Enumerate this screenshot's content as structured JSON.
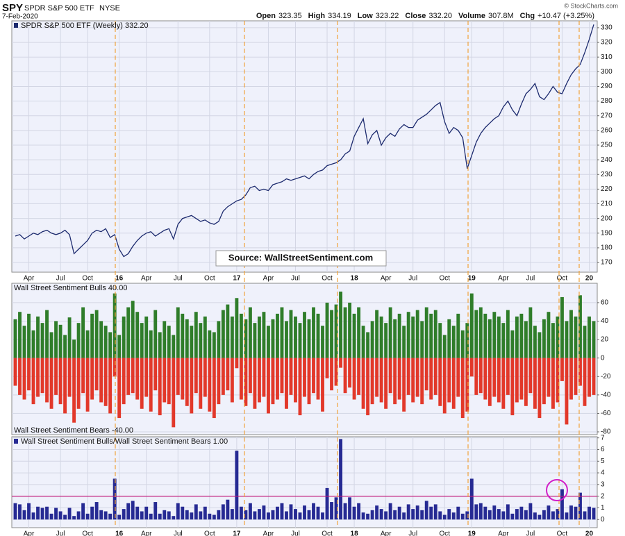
{
  "header": {
    "symbol": "SPY",
    "name": "SPDR S&P 500 ETF",
    "exchange": "NYSE",
    "date": "7-Feb-2020",
    "copyright": "© StockCharts.com",
    "quote": [
      {
        "label": "Open",
        "value": "323.35"
      },
      {
        "label": "High",
        "value": "334.19"
      },
      {
        "label": "Low",
        "value": "323.22"
      },
      {
        "label": "Close",
        "value": "332.20"
      },
      {
        "label": "Volume",
        "value": "307.8M"
      },
      {
        "label": "Chg",
        "value": "+10.47 (+3.25%)"
      }
    ]
  },
  "chart_data": [
    {
      "type": "line",
      "title": "SPDR S&P 500 ETF (Weekly) 332.20",
      "annotation": "Source: WallStreetSentiment.com",
      "color": "#1c2a6e",
      "grid": true,
      "categories": [
        null,
        null,
        null,
        "Apr",
        null,
        null,
        null,
        null,
        null,
        null,
        "Jul",
        null,
        null,
        null,
        null,
        null,
        "Oct",
        null,
        null,
        null,
        null,
        null,
        null,
        "16",
        null,
        null,
        null,
        null,
        null,
        "Apr",
        null,
        null,
        null,
        null,
        null,
        null,
        "Jul",
        null,
        null,
        null,
        null,
        null,
        null,
        "Oct",
        null,
        null,
        null,
        null,
        null,
        "17",
        null,
        null,
        null,
        null,
        null,
        null,
        "Apr",
        null,
        null,
        null,
        null,
        null,
        "Jul",
        null,
        null,
        null,
        null,
        null,
        null,
        "Oct",
        null,
        null,
        null,
        null,
        null,
        "18",
        null,
        null,
        null,
        null,
        null,
        null,
        "Apr",
        null,
        null,
        null,
        null,
        null,
        "Jul",
        null,
        null,
        null,
        null,
        null,
        null,
        "Oct",
        null,
        null,
        null,
        null,
        null,
        "19",
        null,
        null,
        null,
        null,
        null,
        null,
        "Apr",
        null,
        null,
        null,
        null,
        null,
        "Jul",
        null,
        null,
        null,
        null,
        null,
        null,
        "Oct",
        null,
        null,
        null,
        null,
        null,
        "20",
        null
      ],
      "values": [
        188,
        189,
        186,
        188,
        190,
        189,
        191,
        192,
        190,
        189,
        190,
        192,
        189,
        176,
        179,
        182,
        185,
        190,
        192,
        191,
        193,
        187,
        189,
        179,
        174,
        176,
        181,
        185,
        188,
        190,
        191,
        188,
        190,
        192,
        193,
        186,
        196,
        200,
        201,
        202,
        200,
        198,
        199,
        197,
        196,
        198,
        205,
        208,
        210,
        212,
        213,
        216,
        221,
        222,
        219,
        220,
        219,
        223,
        224,
        225,
        227,
        226,
        227,
        228,
        229,
        227,
        230,
        232,
        233,
        236,
        237,
        238,
        240,
        244,
        246,
        256,
        262,
        268,
        251,
        257,
        260,
        250,
        255,
        258,
        256,
        261,
        264,
        262,
        262,
        267,
        269,
        271,
        274,
        277,
        279,
        266,
        258,
        262,
        260,
        255,
        234,
        243,
        252,
        258,
        262,
        265,
        268,
        270,
        276,
        280,
        274,
        270,
        278,
        285,
        288,
        292,
        283,
        281,
        285,
        290,
        286,
        285,
        292,
        298,
        302,
        305,
        313,
        322,
        332.2
      ],
      "ylim": [
        163.4,
        334.7
      ],
      "yticks": [
        170,
        180,
        190,
        200,
        210,
        220,
        230,
        240,
        250,
        260,
        270,
        280,
        290,
        300,
        310,
        320,
        330
      ]
    },
    {
      "type": "bar",
      "grid": true,
      "series": [
        {
          "name": "Wall Street Sentiment Bulls 40.00",
          "color": "#2f7d2a",
          "values": [
            42,
            50,
            35,
            48,
            30,
            45,
            38,
            52,
            28,
            40,
            36,
            25,
            44,
            20,
            38,
            55,
            30,
            48,
            52,
            40,
            35,
            28,
            70,
            25,
            45,
            55,
            62,
            50,
            38,
            45,
            30,
            52,
            28,
            40,
            35,
            25,
            55,
            48,
            42,
            35,
            50,
            38,
            45,
            30,
            28,
            40,
            52,
            58,
            45,
            65,
            48,
            42,
            55,
            38,
            45,
            50,
            35,
            42,
            48,
            55,
            40,
            52,
            45,
            38,
            50,
            42,
            55,
            48,
            35,
            60,
            52,
            58,
            72,
            55,
            60,
            48,
            55,
            35,
            28,
            40,
            52,
            45,
            38,
            55,
            42,
            48,
            35,
            50,
            45,
            52,
            40,
            55,
            48,
            52,
            38,
            25,
            42,
            35,
            48,
            30,
            38,
            70,
            52,
            55,
            48,
            42,
            50,
            45,
            38,
            52,
            30,
            45,
            48,
            40,
            55,
            35,
            28,
            42,
            50,
            38,
            45,
            66,
            40,
            52,
            45,
            68,
            35,
            45,
            40
          ]
        },
        {
          "name": "Wall Street Sentiment Bears -40.00",
          "color": "#e2382a",
          "values": [
            -30,
            -40,
            -45,
            -35,
            -50,
            -42,
            -38,
            -48,
            -55,
            -40,
            -50,
            -60,
            -42,
            -70,
            -55,
            -38,
            -58,
            -45,
            -35,
            -48,
            -52,
            -60,
            -20,
            -65,
            -50,
            -40,
            -38,
            -45,
            -55,
            -42,
            -58,
            -35,
            -62,
            -48,
            -50,
            -75,
            -40,
            -45,
            -52,
            -60,
            -38,
            -55,
            -42,
            -58,
            -65,
            -50,
            -40,
            -35,
            -48,
            -11,
            -45,
            -52,
            -38,
            -55,
            -48,
            -42,
            -60,
            -50,
            -45,
            -38,
            -55,
            -40,
            -48,
            -62,
            -42,
            -50,
            -38,
            -45,
            -58,
            -22,
            -35,
            -30,
            -10.5,
            -38,
            -32,
            -45,
            -40,
            -55,
            -62,
            -50,
            -42,
            -48,
            -55,
            -38,
            -50,
            -45,
            -58,
            -40,
            -48,
            -42,
            -50,
            -35,
            -45,
            -40,
            -52,
            -60,
            -48,
            -55,
            -42,
            -65,
            -58,
            -20,
            -40,
            -38,
            -45,
            -52,
            -42,
            -48,
            -55,
            -40,
            -62,
            -48,
            -45,
            -52,
            -38,
            -55,
            -65,
            -50,
            -42,
            -55,
            -48,
            -25,
            -72,
            -45,
            -40,
            -30,
            -52,
            -42,
            -40
          ]
        }
      ],
      "ylim": [
        -83,
        81
      ],
      "yticks": [
        -80,
        -60,
        -40,
        -20,
        0,
        20,
        40,
        60
      ]
    },
    {
      "type": "bar",
      "title": "Wall Street Sentiment Bulls/Wall Street Sentiment Bears 1.00",
      "color": "#262a93",
      "grid": true,
      "reference_line": 2,
      "reference_color": "#c2187a",
      "categories": [
        null,
        null,
        null,
        "Apr",
        null,
        null,
        null,
        null,
        null,
        null,
        "Jul",
        null,
        null,
        null,
        null,
        null,
        "Oct",
        null,
        null,
        null,
        null,
        null,
        null,
        "16",
        null,
        null,
        null,
        null,
        null,
        "Apr",
        null,
        null,
        null,
        null,
        null,
        null,
        "Jul",
        null,
        null,
        null,
        null,
        null,
        null,
        "Oct",
        null,
        null,
        null,
        null,
        null,
        "17",
        null,
        null,
        null,
        null,
        null,
        null,
        "Apr",
        null,
        null,
        null,
        null,
        null,
        "Jul",
        null,
        null,
        null,
        null,
        null,
        null,
        "Oct",
        null,
        null,
        null,
        null,
        null,
        "18",
        null,
        null,
        null,
        null,
        null,
        null,
        "Apr",
        null,
        null,
        null,
        null,
        null,
        "Jul",
        null,
        null,
        null,
        null,
        null,
        null,
        "Oct",
        null,
        null,
        null,
        null,
        null,
        "19",
        null,
        null,
        null,
        null,
        null,
        null,
        "Apr",
        null,
        null,
        null,
        null,
        null,
        "Jul",
        null,
        null,
        null,
        null,
        null,
        null,
        "Oct",
        null,
        null,
        null,
        null,
        null,
        "20",
        null
      ],
      "values": [
        1.4,
        1.3,
        0.8,
        1.4,
        0.6,
        1.1,
        1.0,
        1.1,
        0.5,
        1.0,
        0.7,
        0.4,
        1.0,
        0.3,
        0.7,
        1.4,
        0.5,
        1.1,
        1.5,
        0.8,
        0.7,
        0.5,
        3.5,
        0.4,
        0.9,
        1.4,
        1.6,
        1.1,
        0.7,
        1.1,
        0.5,
        1.5,
        0.5,
        0.8,
        0.7,
        0.3,
        1.4,
        1.1,
        0.8,
        0.6,
        1.3,
        0.7,
        1.1,
        0.5,
        0.4,
        0.8,
        1.3,
        1.7,
        0.9,
        5.9,
        1.1,
        0.8,
        1.4,
        0.7,
        0.9,
        1.2,
        0.6,
        0.8,
        1.1,
        1.4,
        0.7,
        1.3,
        0.9,
        0.6,
        1.2,
        0.8,
        1.4,
        1.1,
        0.6,
        2.7,
        1.5,
        1.9,
        6.9,
        1.4,
        1.9,
        1.1,
        1.4,
        0.6,
        0.5,
        0.8,
        1.2,
        0.9,
        0.7,
        1.4,
        0.8,
        1.1,
        0.6,
        1.3,
        0.9,
        1.2,
        0.8,
        1.6,
        1.1,
        1.3,
        0.7,
        0.4,
        0.9,
        0.6,
        1.1,
        0.5,
        0.7,
        3.5,
        1.3,
        1.4,
        1.1,
        0.8,
        1.2,
        0.9,
        0.7,
        1.3,
        0.5,
        0.9,
        1.1,
        0.8,
        1.4,
        0.6,
        0.4,
        0.8,
        1.2,
        0.7,
        0.9,
        2.6,
        0.6,
        1.2,
        1.1,
        2.3,
        0.7,
        1.1,
        1.0
      ],
      "ylim": [
        -0.7,
        7.1
      ],
      "yticks": [
        0,
        1,
        2,
        3,
        4,
        5,
        6,
        7
      ]
    }
  ]
}
